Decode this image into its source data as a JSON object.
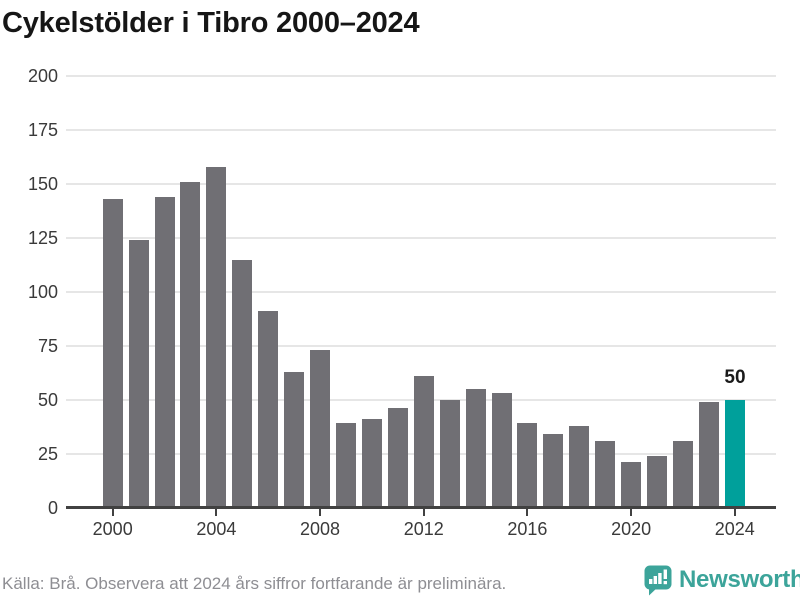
{
  "title": "Cykelstölder i Tibro 2000–2024",
  "chart_data": {
    "type": "bar",
    "title": "Cykelstölder i Tibro 2000–2024",
    "xlabel": "",
    "ylabel": "",
    "x": [
      2000,
      2001,
      2002,
      2003,
      2004,
      2005,
      2006,
      2007,
      2008,
      2009,
      2010,
      2011,
      2012,
      2013,
      2014,
      2015,
      2016,
      2017,
      2018,
      2019,
      2020,
      2021,
      2022,
      2023,
      2024
    ],
    "values": [
      143,
      124,
      144,
      151,
      158,
      115,
      91,
      63,
      73,
      39,
      41,
      46,
      61,
      50,
      55,
      53,
      39,
      34,
      38,
      31,
      21,
      24,
      31,
      49,
      50
    ],
    "ylim": [
      0,
      200
    ],
    "yticks": [
      0,
      25,
      50,
      75,
      100,
      125,
      150,
      175,
      200
    ],
    "xticks": [
      2000,
      2004,
      2008,
      2012,
      2016,
      2020,
      2024
    ],
    "grid": true,
    "legend": "none",
    "bar_color": "#706f74",
    "highlight": {
      "year": 2024,
      "value": 50,
      "value_label": "50",
      "color": "#00a09b"
    }
  },
  "footer": {
    "source_text": "Källa: Brå. Observera att 2024 års siffror fortfarande är preliminära."
  },
  "branding": {
    "logo_text": "Newsworthy",
    "logo_icon": "bar-chart-speech-bubble-icon",
    "brand_color": "#3ca49a"
  }
}
